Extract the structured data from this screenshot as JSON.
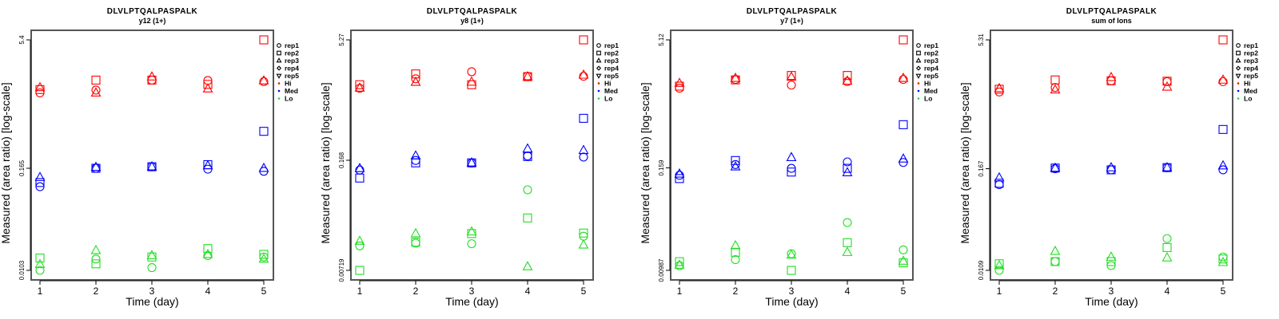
{
  "colors": {
    "Hi": "#ff0000",
    "Med": "#0000ff",
    "Lo": "#22dd22"
  },
  "legend": {
    "reps": [
      {
        "label": "rep1",
        "shape": "circle"
      },
      {
        "label": "rep2",
        "shape": "square"
      },
      {
        "label": "rep3",
        "shape": "triangle-up"
      },
      {
        "label": "rep4",
        "shape": "diamond"
      },
      {
        "label": "rep5",
        "shape": "triangle-down"
      }
    ],
    "groups": [
      "Hi",
      "Med",
      "Lo"
    ]
  },
  "chart_data": [
    {
      "type": "scatter",
      "title": "DLVLPTQALPASPALK",
      "subtitle": "y12 (1+)",
      "xlabel": "Time (day)",
      "ylabel": "Measured (area ratio) [log-scale]",
      "yscale": "log",
      "x": [
        1,
        2,
        3,
        4,
        5
      ],
      "xticks": [
        "1",
        "2",
        "3",
        "4",
        "5"
      ],
      "yticks": [
        {
          "value": 0.0103,
          "label": "0.0103"
        },
        {
          "value": 0.165,
          "label": "0.165"
        },
        {
          "value": 5.4,
          "label": "5.4"
        }
      ],
      "ylim": [
        0.0103,
        5.4
      ],
      "legend_position": "right",
      "series": {
        "Hi": {
          "rep1": [
            1.28,
            1.38,
            1.81,
            1.79,
            1.74
          ],
          "rep2": [
            1.4,
            1.81,
            1.81,
            1.61,
            5.4
          ],
          "rep3": [
            1.48,
            1.28,
            1.98,
            1.43,
            1.78
          ]
        },
        "Med": {
          "rep1": [
            0.1,
            0.165,
            0.172,
            0.161,
            0.152
          ],
          "rep2": [
            0.112,
            0.165,
            0.172,
            0.182,
            0.45
          ],
          "rep3": [
            0.129,
            0.17,
            0.172,
            0.177,
            0.165
          ]
        },
        "Lo": {
          "rep1": [
            0.0103,
            0.014,
            0.0111,
            0.0154,
            0.0148
          ],
          "rep2": [
            0.0144,
            0.0123,
            0.0148,
            0.0186,
            0.0159
          ],
          "rep3": [
            0.0121,
            0.0177,
            0.0154,
            0.0159,
            0.014
          ]
        }
      }
    },
    {
      "type": "scatter",
      "title": "DLVLPTQALPASPALK",
      "subtitle": "y8 (1+)",
      "xlabel": "Time (day)",
      "ylabel": "Measured (area ratio) [log-scale]",
      "yscale": "log",
      "x": [
        1,
        2,
        3,
        4,
        5
      ],
      "xticks": [
        "1",
        "2",
        "3",
        "4",
        "5"
      ],
      "yticks": [
        {
          "value": 0.00719,
          "label": "0.00719"
        },
        {
          "value": 0.168,
          "label": "0.168"
        },
        {
          "value": 5.27,
          "label": "5.27"
        }
      ],
      "ylim": [
        0.00719,
        5.27
      ],
      "legend_position": "right",
      "series": {
        "Hi": {
          "rep1": [
            1.32,
            1.73,
            2.12,
            1.86,
            1.86
          ],
          "rep2": [
            1.46,
            1.99,
            1.46,
            1.84,
            5.27
          ],
          "rep3": [
            1.33,
            1.57,
            1.58,
            1.84,
            1.93
          ]
        },
        "Med": {
          "rep1": [
            0.127,
            0.167,
            0.155,
            0.19,
            0.184
          ],
          "rep2": [
            0.101,
            0.156,
            0.156,
            0.187,
            0.558
          ],
          "rep3": [
            0.133,
            0.191,
            0.156,
            0.233,
            0.223
          ]
        },
        "Lo": {
          "rep1": [
            0.0145,
            0.0157,
            0.0154,
            0.0721,
            0.0191
          ],
          "rep2": [
            0.00719,
            0.0161,
            0.0206,
            0.0322,
            0.0209
          ],
          "rep3": [
            0.0166,
            0.0206,
            0.0217,
            0.008,
            0.0149
          ]
        }
      }
    },
    {
      "type": "scatter",
      "title": "DLVLPTQALPASPALK",
      "subtitle": "y7 (1+)",
      "xlabel": "Time (day)",
      "ylabel": "Measured (area ratio) [log-scale]",
      "yscale": "log",
      "x": [
        1,
        2,
        3,
        4,
        5
      ],
      "xticks": [
        "1",
        "2",
        "3",
        "4",
        "5"
      ],
      "yticks": [
        {
          "value": 0.00987,
          "label": "0.00987"
        },
        {
          "value": 0.159,
          "label": "0.159"
        },
        {
          "value": 5.12,
          "label": "5.12"
        }
      ],
      "ylim": [
        0.00987,
        5.12
      ],
      "legend_position": "right",
      "series": {
        "Hi": {
          "rep1": [
            1.38,
            1.75,
            1.5,
            1.65,
            1.75
          ],
          "rep2": [
            1.46,
            1.73,
            1.95,
            1.95,
            5.12
          ],
          "rep3": [
            1.58,
            1.81,
            1.87,
            1.68,
            1.81
          ]
        },
        "Med": {
          "rep1": [
            0.13,
            0.174,
            0.157,
            0.187,
            0.184
          ],
          "rep2": [
            0.119,
            0.194,
            0.142,
            0.157,
            0.513
          ],
          "rep3": [
            0.135,
            0.164,
            0.211,
            0.14,
            0.203
          ]
        },
        "Lo": {
          "rep1": [
            0.0112,
            0.0132,
            0.0155,
            0.0361,
            0.0172
          ],
          "rep2": [
            0.0125,
            0.0161,
            0.00987,
            0.0209,
            0.0121
          ],
          "rep3": [
            0.0114,
            0.0193,
            0.015,
            0.0161,
            0.0127
          ]
        }
      }
    },
    {
      "type": "scatter",
      "title": "DLVLPTQALPASPALK",
      "subtitle": "sum of Ions",
      "xlabel": "Time (day)",
      "ylabel": "Measured (area ratio) [log-scale]",
      "yscale": "log",
      "x": [
        1,
        2,
        3,
        4,
        5
      ],
      "xticks": [
        "1",
        "2",
        "3",
        "4",
        "5"
      ],
      "yticks": [
        {
          "value": 0.0109,
          "label": "0.0109"
        },
        {
          "value": 0.167,
          "label": "0.167"
        },
        {
          "value": 5.31,
          "label": "5.31"
        }
      ],
      "ylim": [
        0.0109,
        5.31
      ],
      "legend_position": "right",
      "series": {
        "Hi": {
          "rep1": [
            1.31,
            1.48,
            1.77,
            1.73,
            1.73
          ],
          "rep2": [
            1.41,
            1.81,
            1.77,
            1.75,
            5.31
          ],
          "rep3": [
            1.44,
            1.39,
            1.94,
            1.5,
            1.81
          ]
        },
        "Med": {
          "rep1": [
            0.109,
            0.167,
            0.162,
            0.172,
            0.162
          ],
          "rep2": [
            0.113,
            0.17,
            0.162,
            0.172,
            0.479
          ],
          "rep3": [
            0.131,
            0.17,
            0.172,
            0.172,
            0.181
          ]
        },
        "Lo": {
          "rep1": [
            0.0109,
            0.0138,
            0.0124,
            0.0256,
            0.0156
          ],
          "rep2": [
            0.013,
            0.0138,
            0.0138,
            0.0201,
            0.0148
          ],
          "rep3": [
            0.0124,
            0.0182,
            0.0156,
            0.0153,
            0.0135
          ]
        }
      }
    }
  ]
}
